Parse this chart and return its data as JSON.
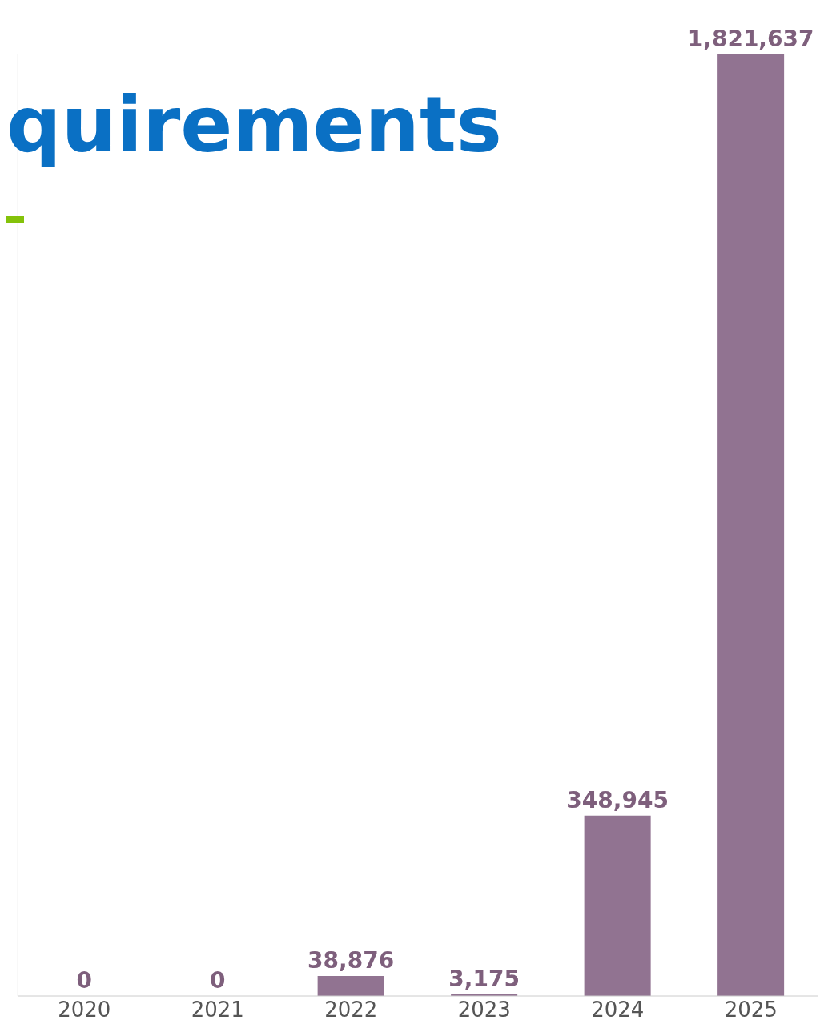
{
  "chart_data": {
    "type": "bar",
    "title": "quirements",
    "categories": [
      "2020",
      "2021",
      "2022",
      "2023",
      "2024",
      "2025"
    ],
    "values": [
      0,
      0,
      38876,
      3175,
      348945,
      1821637
    ],
    "color": "#917391",
    "value_labels": [
      "0",
      "0",
      "38,876",
      "3,175",
      "348,945",
      "1,821,637"
    ],
    "tick_labels": "x",
    "legend": false
  }
}
